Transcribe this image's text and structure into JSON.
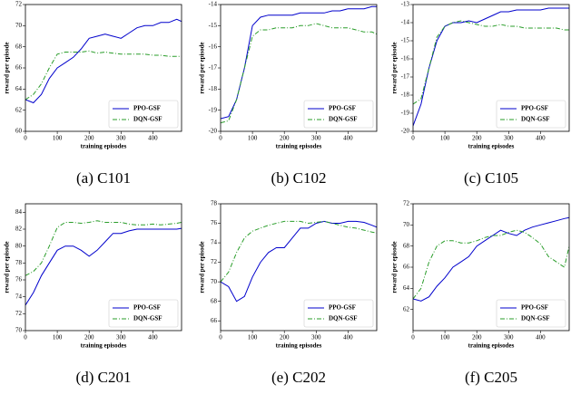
{
  "chart_data": [
    {
      "type": "line",
      "caption": "(a) C101",
      "xlabel": "training episodes",
      "ylabel": "reward per episode",
      "x": [
        0,
        25,
        50,
        75,
        100,
        125,
        150,
        175,
        200,
        225,
        250,
        275,
        300,
        325,
        350,
        375,
        400,
        425,
        450,
        475,
        490
      ],
      "xlim": [
        0,
        490
      ],
      "xticks": [
        0,
        100,
        200,
        300,
        400
      ],
      "ylim": [
        60,
        72
      ],
      "yticks": [
        60,
        62,
        64,
        66,
        68,
        70,
        72
      ],
      "legend": "lower right",
      "series": [
        {
          "name": "PPO-GSF",
          "color": "#0000cc",
          "linestyle": "solid",
          "values": [
            63,
            62.7,
            63.5,
            65,
            66,
            66.5,
            67,
            67.8,
            68.8,
            69,
            69.2,
            69,
            68.8,
            69.3,
            69.8,
            70,
            70,
            70.3,
            70.3,
            70.6,
            70.4
          ]
        },
        {
          "name": "DQN-GSF",
          "color": "#2a9d2a",
          "linestyle": "dashdot",
          "values": [
            63,
            63.5,
            64.5,
            66,
            67.3,
            67.5,
            67.5,
            67.5,
            67.6,
            67.4,
            67.5,
            67.4,
            67.3,
            67.3,
            67.3,
            67.3,
            67.2,
            67.2,
            67.1,
            67.1,
            67.1
          ]
        }
      ]
    },
    {
      "type": "line",
      "caption": "(b) C102",
      "xlabel": "training episodes",
      "ylabel": "reward per episode",
      "x": [
        0,
        25,
        50,
        75,
        100,
        125,
        150,
        175,
        200,
        225,
        250,
        275,
        300,
        325,
        350,
        375,
        400,
        425,
        450,
        475,
        490
      ],
      "xlim": [
        0,
        490
      ],
      "xticks": [
        0,
        100,
        200,
        300,
        400
      ],
      "ylim": [
        -20,
        -14
      ],
      "yticks": [
        -20,
        -19,
        -18,
        -17,
        -16,
        -15,
        -14
      ],
      "legend": "lower right",
      "series": [
        {
          "name": "PPO-GSF",
          "color": "#0000cc",
          "linestyle": "solid",
          "values": [
            -19.4,
            -19.3,
            -18.5,
            -17,
            -15,
            -14.6,
            -14.5,
            -14.5,
            -14.5,
            -14.5,
            -14.4,
            -14.4,
            -14.4,
            -14.4,
            -14.3,
            -14.3,
            -14.2,
            -14.2,
            -14.2,
            -14.1,
            -14.1
          ]
        },
        {
          "name": "DQN-GSF",
          "color": "#2a9d2a",
          "linestyle": "dashdot",
          "values": [
            -19.6,
            -19.5,
            -18.5,
            -17,
            -15.5,
            -15.2,
            -15.2,
            -15.1,
            -15.1,
            -15.1,
            -15.0,
            -15.0,
            -14.9,
            -15.0,
            -15.1,
            -15.1,
            -15.1,
            -15.2,
            -15.3,
            -15.3,
            -15.4
          ]
        }
      ]
    },
    {
      "type": "line",
      "caption": "(c) C105",
      "xlabel": "training episodes",
      "ylabel": "reward per episode",
      "x": [
        0,
        25,
        50,
        75,
        100,
        125,
        150,
        175,
        200,
        225,
        250,
        275,
        300,
        325,
        350,
        375,
        400,
        425,
        450,
        475,
        490
      ],
      "xlim": [
        0,
        490
      ],
      "xticks": [
        0,
        100,
        200,
        300,
        400
      ],
      "ylim": [
        -20,
        -13
      ],
      "yticks": [
        -20,
        -19,
        -18,
        -17,
        -16,
        -15,
        -14,
        -13
      ],
      "legend": "lower right",
      "series": [
        {
          "name": "PPO-GSF",
          "color": "#0000cc",
          "linestyle": "solid",
          "values": [
            -19.7,
            -18.5,
            -16.5,
            -15,
            -14.2,
            -14.0,
            -14.0,
            -13.9,
            -14.0,
            -13.8,
            -13.6,
            -13.4,
            -13.4,
            -13.3,
            -13.3,
            -13.3,
            -13.3,
            -13.2,
            -13.2,
            -13.2,
            -13.2
          ]
        },
        {
          "name": "DQN-GSF",
          "color": "#2a9d2a",
          "linestyle": "dashdot",
          "values": [
            -18.5,
            -18.2,
            -16.5,
            -14.8,
            -14.2,
            -14.0,
            -13.9,
            -14.0,
            -14.1,
            -14.2,
            -14.2,
            -14.1,
            -14.2,
            -14.2,
            -14.3,
            -14.3,
            -14.3,
            -14.3,
            -14.3,
            -14.4,
            -14.4
          ]
        }
      ]
    },
    {
      "type": "line",
      "caption": "(d) C201",
      "xlabel": "training episodes",
      "ylabel": "reward per episode",
      "x": [
        0,
        25,
        50,
        75,
        100,
        125,
        150,
        175,
        200,
        225,
        250,
        275,
        300,
        325,
        350,
        375,
        400,
        425,
        450,
        475,
        490
      ],
      "xlim": [
        0,
        490
      ],
      "xticks": [
        0,
        100,
        200,
        300,
        400
      ],
      "ylim": [
        70,
        85
      ],
      "yticks": [
        70,
        72,
        74,
        76,
        78,
        80,
        82,
        84
      ],
      "legend": "lower right",
      "series": [
        {
          "name": "PPO-GSF",
          "color": "#0000cc",
          "linestyle": "solid",
          "values": [
            73,
            74.5,
            76.5,
            78,
            79.5,
            80,
            80,
            79.5,
            78.8,
            79.5,
            80.5,
            81.5,
            81.5,
            81.8,
            82,
            82,
            82,
            82,
            82,
            82,
            82.1
          ]
        },
        {
          "name": "DQN-GSF",
          "color": "#2a9d2a",
          "linestyle": "dashdot",
          "values": [
            76.5,
            77,
            78,
            80,
            82.2,
            82.8,
            82.8,
            82.7,
            82.8,
            83,
            82.8,
            82.8,
            82.8,
            82.6,
            82.5,
            82.5,
            82.6,
            82.5,
            82.6,
            82.7,
            82.8
          ]
        }
      ]
    },
    {
      "type": "line",
      "caption": "(e) C202",
      "xlabel": "training episodes",
      "ylabel": "reward per episode",
      "x": [
        0,
        25,
        50,
        75,
        100,
        125,
        150,
        175,
        200,
        225,
        250,
        275,
        300,
        325,
        350,
        375,
        400,
        425,
        450,
        475,
        490
      ],
      "xlim": [
        0,
        490
      ],
      "xticks": [
        0,
        100,
        200,
        300,
        400
      ],
      "ylim": [
        65,
        78
      ],
      "yticks": [
        66,
        68,
        70,
        72,
        74,
        76,
        78
      ],
      "legend": "lower right",
      "series": [
        {
          "name": "PPO-GSF",
          "color": "#0000cc",
          "linestyle": "solid",
          "values": [
            70,
            69.5,
            68,
            68.5,
            70.5,
            72,
            73,
            73.5,
            73.5,
            74.5,
            75.5,
            75.5,
            76,
            76.2,
            76,
            76,
            76.2,
            76.2,
            76.1,
            75.8,
            75.6
          ]
        },
        {
          "name": "DQN-GSF",
          "color": "#2a9d2a",
          "linestyle": "dashdot",
          "values": [
            70,
            71,
            73,
            74.5,
            75.2,
            75.5,
            75.8,
            76,
            76.2,
            76.2,
            76.2,
            76,
            76.1,
            76.2,
            76,
            75.8,
            75.6,
            75.5,
            75.3,
            75.1,
            75
          ]
        }
      ]
    },
    {
      "type": "line",
      "caption": "(f) C205",
      "xlabel": "training episodes",
      "ylabel": "reward per episode",
      "x": [
        0,
        25,
        50,
        75,
        100,
        125,
        150,
        175,
        200,
        225,
        250,
        275,
        300,
        325,
        350,
        375,
        400,
        425,
        450,
        475,
        490
      ],
      "xlim": [
        0,
        490
      ],
      "xticks": [
        0,
        100,
        200,
        300,
        400
      ],
      "ylim": [
        60,
        72
      ],
      "yticks": [
        62,
        64,
        66,
        68,
        70,
        72
      ],
      "legend": "lower right",
      "series": [
        {
          "name": "PPO-GSF",
          "color": "#0000cc",
          "linestyle": "solid",
          "values": [
            63,
            62.8,
            63.2,
            64.2,
            65,
            66,
            66.5,
            67,
            68,
            68.5,
            69,
            69.5,
            69.2,
            69,
            69.5,
            69.8,
            70,
            70.2,
            70.4,
            70.6,
            70.7
          ]
        },
        {
          "name": "DQN-GSF",
          "color": "#2a9d2a",
          "linestyle": "dashdot",
          "values": [
            63,
            64,
            66.5,
            68,
            68.5,
            68.5,
            68.3,
            68.3,
            68.5,
            68.8,
            69,
            69,
            69.3,
            69.5,
            69.3,
            68.8,
            68.2,
            67,
            66.5,
            66,
            68
          ]
        }
      ]
    }
  ]
}
